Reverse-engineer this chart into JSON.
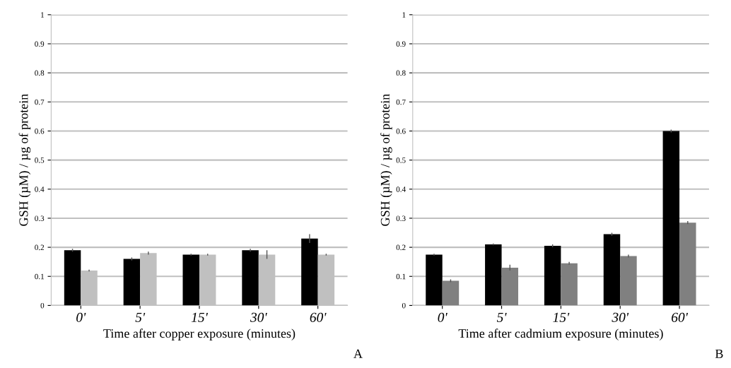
{
  "chart_data": [
    {
      "type": "bar",
      "xlabel": "Time after copper exposure (minutes)",
      "ylabel": "GSH (µM) / µg of protein",
      "categories": [
        "0'",
        "5'",
        "15'",
        "30'",
        "60'"
      ],
      "ylim": [
        0,
        1
      ],
      "yticks": [
        0,
        0.1,
        0.2,
        0.3,
        0.4,
        0.5,
        0.6,
        0.7,
        0.8,
        0.9,
        1
      ],
      "grid": "y",
      "annotations": [
        "A"
      ],
      "series": [
        {
          "color": "#000000",
          "values": [
            0.19,
            0.16,
            0.175,
            0.19,
            0.23
          ],
          "errors": [
            0.005,
            0.005,
            0.003,
            0.005,
            0.015
          ]
        },
        {
          "color": "#c0c0c0",
          "values": [
            0.12,
            0.18,
            0.175,
            0.175,
            0.175
          ],
          "errors": [
            0.003,
            0.005,
            0.003,
            0.015,
            0.003
          ]
        }
      ]
    },
    {
      "type": "bar",
      "xlabel": "Time after cadmium exposure (minutes)",
      "ylabel": "GSH (µM) / µg of protein",
      "categories": [
        "0'",
        "5'",
        "15'",
        "30'",
        "60'"
      ],
      "ylim": [
        0,
        1
      ],
      "yticks": [
        0,
        0.1,
        0.2,
        0.3,
        0.4,
        0.5,
        0.6,
        0.7,
        0.8,
        0.9,
        1
      ],
      "grid": "y",
      "annotations": [
        "B"
      ],
      "series": [
        {
          "color": "#000000",
          "values": [
            0.175,
            0.21,
            0.205,
            0.245,
            0.6
          ],
          "errors": [
            0.003,
            0.003,
            0.005,
            0.005,
            0.005
          ]
        },
        {
          "color": "#808080",
          "values": [
            0.085,
            0.13,
            0.145,
            0.17,
            0.285
          ],
          "errors": [
            0.005,
            0.01,
            0.005,
            0.005,
            0.005
          ]
        }
      ]
    }
  ]
}
